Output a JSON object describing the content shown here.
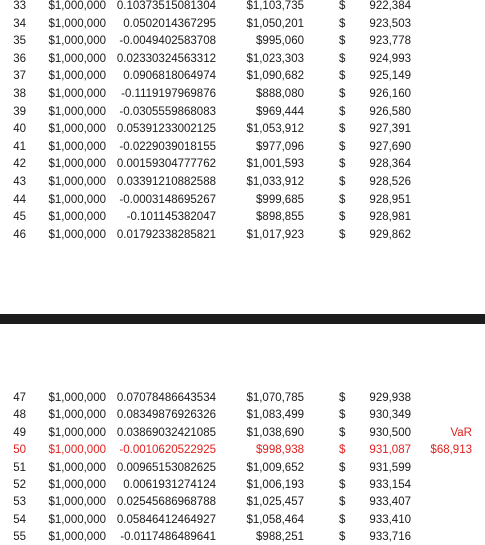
{
  "sheet": {
    "top_rows": [
      {
        "idx": "33",
        "amount": "$1,000,000",
        "ret": "0.10373515081304",
        "value": "$1,103,735",
        "cur": "$",
        "sorted": "922,384",
        "note": ""
      },
      {
        "idx": "34",
        "amount": "$1,000,000",
        "ret": "0.0502014367295",
        "value": "$1,050,201",
        "cur": "$",
        "sorted": "923,503",
        "note": ""
      },
      {
        "idx": "35",
        "amount": "$1,000,000",
        "ret": "-0.0049402583708",
        "value": "$995,060",
        "cur": "$",
        "sorted": "923,778",
        "note": ""
      },
      {
        "idx": "36",
        "amount": "$1,000,000",
        "ret": "0.02330324563312",
        "value": "$1,023,303",
        "cur": "$",
        "sorted": "924,993",
        "note": ""
      },
      {
        "idx": "37",
        "amount": "$1,000,000",
        "ret": "0.0906818064974",
        "value": "$1,090,682",
        "cur": "$",
        "sorted": "925,149",
        "note": ""
      },
      {
        "idx": "38",
        "amount": "$1,000,000",
        "ret": "-0.1119197969876",
        "value": "$888,080",
        "cur": "$",
        "sorted": "926,160",
        "note": ""
      },
      {
        "idx": "39",
        "amount": "$1,000,000",
        "ret": "-0.0305559868083",
        "value": "$969,444",
        "cur": "$",
        "sorted": "926,580",
        "note": ""
      },
      {
        "idx": "40",
        "amount": "$1,000,000",
        "ret": "0.05391233002125",
        "value": "$1,053,912",
        "cur": "$",
        "sorted": "927,391",
        "note": ""
      },
      {
        "idx": "41",
        "amount": "$1,000,000",
        "ret": "-0.0229039018155",
        "value": "$977,096",
        "cur": "$",
        "sorted": "927,690",
        "note": ""
      },
      {
        "idx": "42",
        "amount": "$1,000,000",
        "ret": "0.00159304777762",
        "value": "$1,001,593",
        "cur": "$",
        "sorted": "928,364",
        "note": ""
      },
      {
        "idx": "43",
        "amount": "$1,000,000",
        "ret": "0.03391210882588",
        "value": "$1,033,912",
        "cur": "$",
        "sorted": "928,526",
        "note": ""
      },
      {
        "idx": "44",
        "amount": "$1,000,000",
        "ret": "-0.0003148695267",
        "value": "$999,685",
        "cur": "$",
        "sorted": "928,951",
        "note": ""
      },
      {
        "idx": "45",
        "amount": "$1,000,000",
        "ret": "-0.101145382047",
        "value": "$898,855",
        "cur": "$",
        "sorted": "928,981",
        "note": ""
      },
      {
        "idx": "46",
        "amount": "$1,000,000",
        "ret": "0.01792338285821",
        "value": "$1,017,923",
        "cur": "$",
        "sorted": "929,862",
        "note": ""
      }
    ],
    "bottom_rows": [
      {
        "idx": "47",
        "amount": "$1,000,000",
        "ret": "0.07078486643534",
        "value": "$1,070,785",
        "cur": "$",
        "sorted": "929,938",
        "note": "",
        "highlight": false
      },
      {
        "idx": "48",
        "amount": "$1,000,000",
        "ret": "0.08349876926326",
        "value": "$1,083,499",
        "cur": "$",
        "sorted": "930,349",
        "note": "",
        "highlight": false
      },
      {
        "idx": "49",
        "amount": "$1,000,000",
        "ret": "0.03869032421085",
        "value": "$1,038,690",
        "cur": "$",
        "sorted": "930,500",
        "note": "VaR",
        "highlight": false
      },
      {
        "idx": "50",
        "amount": "$1,000,000",
        "ret": "-0.0010620522925",
        "value": "$998,938",
        "cur": "$",
        "sorted": "931,087",
        "note": "$68,913",
        "highlight": true
      },
      {
        "idx": "51",
        "amount": "$1,000,000",
        "ret": "0.00965153082625",
        "value": "$1,009,652",
        "cur": "$",
        "sorted": "931,599",
        "note": "",
        "highlight": false
      },
      {
        "idx": "52",
        "amount": "$1,000,000",
        "ret": "0.0061931274124",
        "value": "$1,006,193",
        "cur": "$",
        "sorted": "933,154",
        "note": "",
        "highlight": false
      },
      {
        "idx": "53",
        "amount": "$1,000,000",
        "ret": "0.02545686968788",
        "value": "$1,025,457",
        "cur": "$",
        "sorted": "933,407",
        "note": "",
        "highlight": false
      },
      {
        "idx": "54",
        "amount": "$1,000,000",
        "ret": "0.05846412464927",
        "value": "$1,058,464",
        "cur": "$",
        "sorted": "933,410",
        "note": "",
        "highlight": false
      },
      {
        "idx": "55",
        "amount": "$1,000,000",
        "ret": "-0.0117486489641",
        "value": "$988,251",
        "cur": "$",
        "sorted": "933,716",
        "note": "",
        "highlight": false
      }
    ]
  },
  "colors": {
    "highlight": "#e0201f",
    "text": "#1a1a1a",
    "divider": "#1c1c1c"
  }
}
